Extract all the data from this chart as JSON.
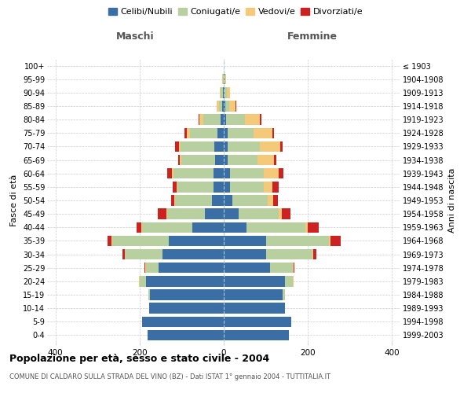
{
  "age_groups": [
    "0-4",
    "5-9",
    "10-14",
    "15-19",
    "20-24",
    "25-29",
    "30-34",
    "35-39",
    "40-44",
    "45-49",
    "50-54",
    "55-59",
    "60-64",
    "65-69",
    "70-74",
    "75-79",
    "80-84",
    "85-89",
    "90-94",
    "95-99",
    "100+"
  ],
  "birth_years": [
    "1999-2003",
    "1994-1998",
    "1989-1993",
    "1984-1988",
    "1979-1983",
    "1974-1978",
    "1969-1973",
    "1964-1968",
    "1959-1963",
    "1954-1958",
    "1949-1953",
    "1944-1948",
    "1939-1943",
    "1934-1938",
    "1929-1933",
    "1924-1928",
    "1919-1923",
    "1914-1918",
    "1909-1913",
    "1904-1908",
    "≤ 1903"
  ],
  "maschi": {
    "celibi": [
      182,
      195,
      178,
      175,
      185,
      155,
      145,
      130,
      75,
      45,
      28,
      25,
      25,
      20,
      22,
      15,
      8,
      3,
      2,
      0,
      0
    ],
    "coniugati": [
      0,
      0,
      0,
      5,
      15,
      30,
      90,
      135,
      120,
      90,
      88,
      85,
      95,
      80,
      80,
      65,
      40,
      8,
      5,
      2,
      0
    ],
    "vedovi": [
      0,
      0,
      0,
      0,
      1,
      1,
      1,
      1,
      1,
      1,
      2,
      2,
      3,
      4,
      5,
      8,
      10,
      5,
      3,
      1,
      0
    ],
    "divorziati": [
      0,
      0,
      0,
      0,
      1,
      2,
      5,
      10,
      12,
      20,
      8,
      10,
      12,
      5,
      8,
      5,
      2,
      0,
      0,
      0,
      0
    ]
  },
  "femmine": {
    "nubili": [
      155,
      160,
      145,
      140,
      145,
      110,
      100,
      100,
      55,
      35,
      20,
      15,
      15,
      10,
      10,
      10,
      5,
      3,
      2,
      1,
      0
    ],
    "coniugate": [
      0,
      0,
      0,
      5,
      20,
      55,
      110,
      150,
      140,
      95,
      85,
      80,
      80,
      70,
      75,
      60,
      45,
      10,
      5,
      2,
      0
    ],
    "vedove": [
      0,
      0,
      0,
      0,
      1,
      1,
      2,
      3,
      5,
      8,
      12,
      20,
      35,
      40,
      50,
      45,
      35,
      15,
      8,
      3,
      0
    ],
    "divorziate": [
      0,
      0,
      0,
      0,
      1,
      2,
      8,
      25,
      25,
      20,
      12,
      15,
      12,
      5,
      5,
      5,
      4,
      1,
      0,
      0,
      0
    ]
  },
  "colors": {
    "celibi": "#3b6ea5",
    "coniugati": "#b8cfa0",
    "vedovi": "#f5c97a",
    "divorziati": "#cc2222"
  },
  "xlim": 420,
  "title": "Popolazione per età, sesso e stato civile - 2004",
  "subtitle": "COMUNE DI CALDARO SULLA STRADA DEL VINO (BZ) - Dati ISTAT 1° gennaio 2004 - TUTTITALIA.IT",
  "ylabel_left": "Fasce di età",
  "ylabel_right": "Anni di nascita"
}
